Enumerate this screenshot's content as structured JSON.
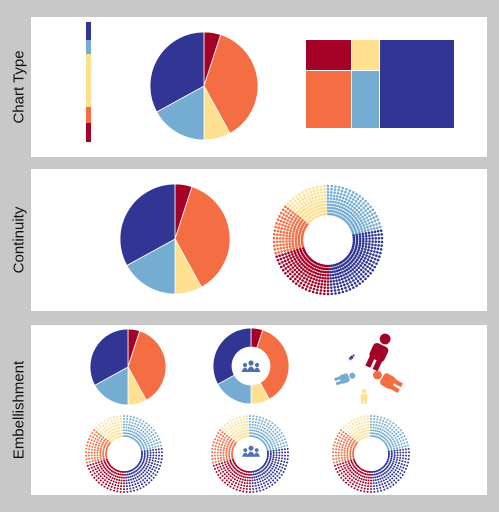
{
  "panels": [
    {
      "id": "chart-type",
      "label": "Chart Type"
    },
    {
      "id": "continuity",
      "label": "Continuity"
    },
    {
      "id": "embellishment",
      "label": "Embellishment"
    }
  ],
  "palette": [
    "#313695",
    "#74add1",
    "#fee090",
    "#f46d43",
    "#a50026"
  ],
  "pie_fractions": [
    0.33,
    0.17,
    0.08,
    0.37,
    0.05
  ],
  "icon_names": [
    "people-icon",
    "person-icon"
  ]
}
